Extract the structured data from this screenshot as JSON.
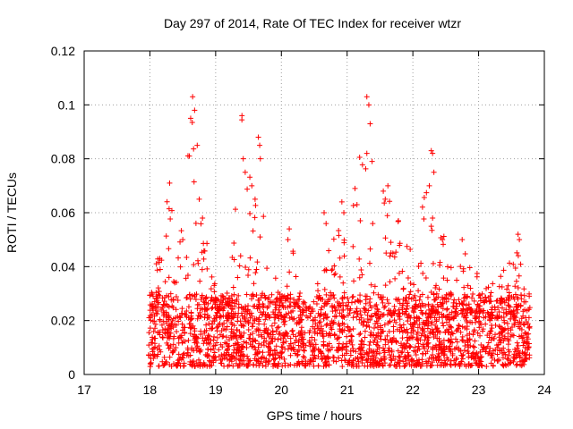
{
  "chart_data": {
    "type": "scatter",
    "title": "Day 297 of 2014, Rate Of TEC Index for receiver wtzr",
    "xlabel": "GPS time / hours",
    "ylabel": "ROTI / TECUs",
    "xlim": [
      17,
      24
    ],
    "ylim": [
      0,
      0.12
    ],
    "xticks": [
      17,
      18,
      19,
      20,
      21,
      22,
      23,
      24
    ],
    "xtick_labels": [
      "17",
      "18",
      "19",
      "20",
      "21",
      "22",
      "23",
      "24"
    ],
    "yticks": [
      0,
      0.02,
      0.04,
      0.06,
      0.08,
      0.1,
      0.12
    ],
    "ytick_labels": [
      "0",
      "0.02",
      "0.04",
      "0.06",
      "0.08",
      "0.1",
      "0.12"
    ],
    "grid": true,
    "marker": "plus",
    "color": "#ff0000",
    "series": [
      {
        "name": "ROTI",
        "x_range": [
          17.98,
          23.78
        ],
        "baseline_band": [
          0.003,
          0.03
        ],
        "envelope": [
          [
            18.0,
            0.028
          ],
          [
            18.1,
            0.042
          ],
          [
            18.3,
            0.07
          ],
          [
            18.45,
            0.05
          ],
          [
            18.65,
            0.103
          ],
          [
            18.8,
            0.06
          ],
          [
            19.0,
            0.035
          ],
          [
            19.2,
            0.03
          ],
          [
            19.4,
            0.096
          ],
          [
            19.55,
            0.07
          ],
          [
            19.65,
            0.088
          ],
          [
            19.8,
            0.045
          ],
          [
            20.0,
            0.03
          ],
          [
            20.15,
            0.054
          ],
          [
            20.3,
            0.03
          ],
          [
            20.5,
            0.028
          ],
          [
            20.7,
            0.05
          ],
          [
            20.9,
            0.064
          ],
          [
            21.1,
            0.069
          ],
          [
            21.3,
            0.103
          ],
          [
            21.45,
            0.05
          ],
          [
            21.6,
            0.07
          ],
          [
            21.8,
            0.057
          ],
          [
            22.0,
            0.045
          ],
          [
            22.3,
            0.083
          ],
          [
            22.5,
            0.05
          ],
          [
            22.7,
            0.05
          ],
          [
            22.9,
            0.04
          ],
          [
            23.1,
            0.035
          ],
          [
            23.3,
            0.035
          ],
          [
            23.55,
            0.05
          ],
          [
            23.75,
            0.03
          ]
        ]
      }
    ],
    "peaks": [
      {
        "x": 18.65,
        "y": 0.103
      },
      {
        "x": 18.68,
        "y": 0.098
      },
      {
        "x": 18.62,
        "y": 0.095
      },
      {
        "x": 18.72,
        "y": 0.085
      },
      {
        "x": 18.6,
        "y": 0.081
      },
      {
        "x": 18.3,
        "y": 0.071
      },
      {
        "x": 18.75,
        "y": 0.065
      },
      {
        "x": 18.8,
        "y": 0.058
      },
      {
        "x": 19.4,
        "y": 0.096
      },
      {
        "x": 19.42,
        "y": 0.08
      },
      {
        "x": 19.45,
        "y": 0.075
      },
      {
        "x": 19.55,
        "y": 0.07
      },
      {
        "x": 19.65,
        "y": 0.088
      },
      {
        "x": 19.67,
        "y": 0.085
      },
      {
        "x": 19.68,
        "y": 0.08
      },
      {
        "x": 19.6,
        "y": 0.065
      },
      {
        "x": 20.12,
        "y": 0.054
      },
      {
        "x": 20.1,
        "y": 0.05
      },
      {
        "x": 20.65,
        "y": 0.06
      },
      {
        "x": 20.68,
        "y": 0.056
      },
      {
        "x": 20.92,
        "y": 0.064
      },
      {
        "x": 20.95,
        "y": 0.06
      },
      {
        "x": 21.12,
        "y": 0.069
      },
      {
        "x": 21.15,
        "y": 0.063
      },
      {
        "x": 21.2,
        "y": 0.057
      },
      {
        "x": 21.3,
        "y": 0.103
      },
      {
        "x": 21.33,
        "y": 0.1
      },
      {
        "x": 21.35,
        "y": 0.093
      },
      {
        "x": 21.3,
        "y": 0.082
      },
      {
        "x": 21.38,
        "y": 0.079
      },
      {
        "x": 21.55,
        "y": 0.068
      },
      {
        "x": 21.58,
        "y": 0.065
      },
      {
        "x": 21.62,
        "y": 0.07
      },
      {
        "x": 21.78,
        "y": 0.057
      },
      {
        "x": 22.28,
        "y": 0.083
      },
      {
        "x": 22.3,
        "y": 0.082
      },
      {
        "x": 22.32,
        "y": 0.075
      },
      {
        "x": 22.25,
        "y": 0.07
      },
      {
        "x": 22.3,
        "y": 0.058
      },
      {
        "x": 22.28,
        "y": 0.055
      },
      {
        "x": 22.45,
        "y": 0.05
      },
      {
        "x": 22.75,
        "y": 0.05
      },
      {
        "x": 23.6,
        "y": 0.052
      },
      {
        "x": 23.62,
        "y": 0.05
      },
      {
        "x": 18.5,
        "y": 0.05
      },
      {
        "x": 18.15,
        "y": 0.043
      },
      {
        "x": 19.38,
        "y": 0.044
      },
      {
        "x": 20.18,
        "y": 0.045
      }
    ]
  }
}
